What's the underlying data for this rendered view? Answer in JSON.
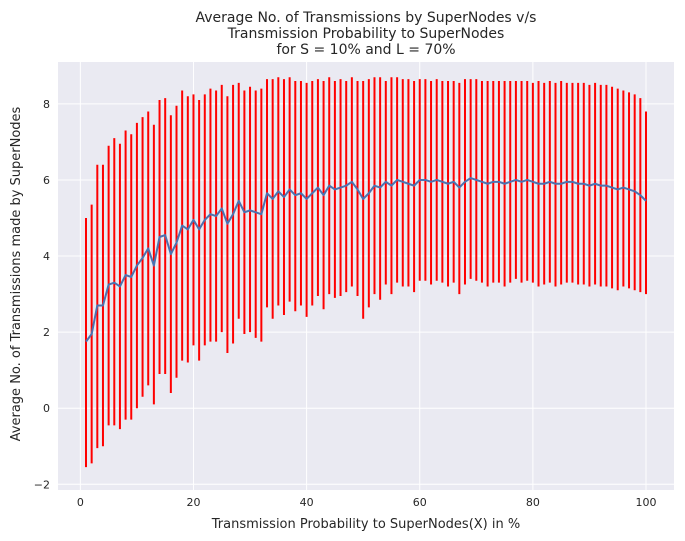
{
  "chart_data": {
    "type": "line",
    "title_lines": [
      "Average No. of Transmissions by SuperNodes v/s",
      "Transmission Probability to SuperNodes",
      "for S = 10% and L = 70%"
    ],
    "xlabel": "Transmission Probability to SuperNodes(X) in %",
    "ylabel": "Average No. of Transmissions made by SuperNodes",
    "xlim": [
      -3.95,
      104.95
    ],
    "ylim": [
      -2.15,
      9.1
    ],
    "xticks": [
      0,
      20,
      40,
      60,
      80,
      100
    ],
    "yticks": [
      -2,
      0,
      2,
      4,
      6,
      8
    ],
    "xtick_labels": [
      "0",
      "20",
      "40",
      "60",
      "80",
      "100"
    ],
    "ytick_labels": [
      "−2",
      "0",
      "2",
      "4",
      "6",
      "8"
    ],
    "grid": true,
    "colors": {
      "background": "#eaeaf2",
      "grid": "#ffffff",
      "mean_line": "#4c72b0",
      "error_bar": "#ff0000",
      "text": "#262626"
    },
    "x": [
      1,
      2,
      3,
      4,
      5,
      6,
      7,
      8,
      9,
      10,
      11,
      12,
      13,
      14,
      15,
      16,
      17,
      18,
      19,
      20,
      21,
      22,
      23,
      24,
      25,
      26,
      27,
      28,
      29,
      30,
      31,
      32,
      33,
      34,
      35,
      36,
      37,
      38,
      39,
      40,
      41,
      42,
      43,
      44,
      45,
      46,
      47,
      48,
      49,
      50,
      51,
      52,
      53,
      54,
      55,
      56,
      57,
      58,
      59,
      60,
      61,
      62,
      63,
      64,
      65,
      66,
      67,
      68,
      69,
      70,
      71,
      72,
      73,
      74,
      75,
      76,
      77,
      78,
      79,
      80,
      81,
      82,
      83,
      84,
      85,
      86,
      87,
      88,
      89,
      90,
      91,
      92,
      93,
      94,
      95,
      96,
      97,
      98,
      99,
      100
    ],
    "mean": [
      1.75,
      1.95,
      2.7,
      2.7,
      3.25,
      3.3,
      3.2,
      3.5,
      3.45,
      3.75,
      3.95,
      4.2,
      3.75,
      4.5,
      4.55,
      4.05,
      4.35,
      4.8,
      4.7,
      4.95,
      4.7,
      4.95,
      5.1,
      5.05,
      5.25,
      4.85,
      5.1,
      5.45,
      5.15,
      5.2,
      5.15,
      5.1,
      5.65,
      5.5,
      5.7,
      5.55,
      5.75,
      5.6,
      5.65,
      5.5,
      5.65,
      5.8,
      5.6,
      5.85,
      5.75,
      5.8,
      5.85,
      5.95,
      5.75,
      5.5,
      5.65,
      5.85,
      5.8,
      5.95,
      5.85,
      6.0,
      5.95,
      5.9,
      5.85,
      6.0,
      6.0,
      5.95,
      6.0,
      5.95,
      5.9,
      5.95,
      5.8,
      5.95,
      6.05,
      6.0,
      5.95,
      5.9,
      5.95,
      5.95,
      5.9,
      5.95,
      6.0,
      5.95,
      6.0,
      5.95,
      5.9,
      5.9,
      5.95,
      5.9,
      5.9,
      5.95,
      5.95,
      5.9,
      5.9,
      5.85,
      5.9,
      5.85,
      5.85,
      5.8,
      5.75,
      5.8,
      5.75,
      5.7,
      5.6,
      5.45
    ],
    "upper": [
      5.0,
      5.35,
      6.4,
      6.4,
      6.9,
      7.1,
      6.95,
      7.3,
      7.2,
      7.5,
      7.65,
      7.8,
      7.45,
      8.1,
      8.15,
      7.7,
      7.95,
      8.35,
      8.2,
      8.25,
      8.1,
      8.25,
      8.4,
      8.35,
      8.5,
      8.2,
      8.5,
      8.55,
      8.35,
      8.45,
      8.35,
      8.4,
      8.65,
      8.65,
      8.7,
      8.65,
      8.7,
      8.6,
      8.6,
      8.55,
      8.6,
      8.65,
      8.6,
      8.7,
      8.6,
      8.65,
      8.6,
      8.7,
      8.6,
      8.6,
      8.65,
      8.7,
      8.7,
      8.6,
      8.7,
      8.7,
      8.65,
      8.65,
      8.6,
      8.65,
      8.65,
      8.6,
      8.65,
      8.6,
      8.6,
      8.6,
      8.55,
      8.65,
      8.65,
      8.65,
      8.6,
      8.6,
      8.6,
      8.6,
      8.6,
      8.6,
      8.6,
      8.6,
      8.6,
      8.55,
      8.6,
      8.55,
      8.6,
      8.55,
      8.6,
      8.55,
      8.55,
      8.55,
      8.55,
      8.5,
      8.55,
      8.5,
      8.5,
      8.45,
      8.4,
      8.35,
      8.3,
      8.25,
      8.15,
      7.8
    ],
    "lower": [
      -1.55,
      -1.45,
      -1.05,
      -1.0,
      -0.45,
      -0.45,
      -0.55,
      -0.3,
      -0.3,
      0.0,
      0.3,
      0.6,
      0.1,
      0.9,
      0.9,
      0.4,
      0.8,
      1.25,
      1.2,
      1.65,
      1.25,
      1.65,
      1.75,
      1.75,
      2.0,
      1.45,
      1.7,
      2.35,
      1.95,
      2.0,
      1.85,
      1.75,
      2.65,
      2.35,
      2.7,
      2.45,
      2.8,
      2.55,
      2.7,
      2.4,
      2.7,
      2.95,
      2.6,
      3.0,
      2.9,
      2.95,
      3.05,
      3.2,
      2.95,
      2.35,
      2.65,
      3.0,
      2.85,
      3.25,
      3.0,
      3.3,
      3.2,
      3.2,
      3.05,
      3.35,
      3.35,
      3.25,
      3.35,
      3.3,
      3.2,
      3.3,
      3.0,
      3.25,
      3.4,
      3.35,
      3.3,
      3.2,
      3.3,
      3.3,
      3.2,
      3.3,
      3.4,
      3.3,
      3.35,
      3.3,
      3.2,
      3.25,
      3.3,
      3.2,
      3.25,
      3.3,
      3.3,
      3.25,
      3.25,
      3.2,
      3.25,
      3.2,
      3.2,
      3.15,
      3.1,
      3.2,
      3.15,
      3.1,
      3.05,
      3.0
    ]
  }
}
